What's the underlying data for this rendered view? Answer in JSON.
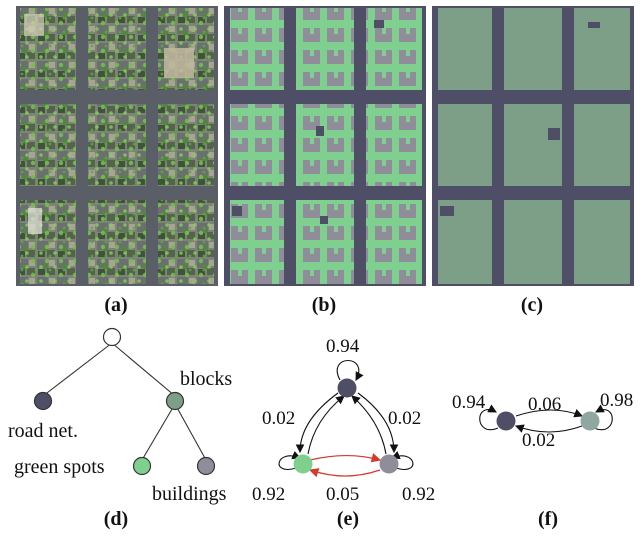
{
  "figure": {
    "panels": [
      {
        "id": "a",
        "label": "(a)",
        "kind": "aerial-rgb"
      },
      {
        "id": "b",
        "label": "(b)",
        "kind": "segmentation"
      },
      {
        "id": "c",
        "label": "(c)",
        "kind": "blocks"
      }
    ],
    "colors": {
      "road": "#4e4e66",
      "green": "#7fd08f",
      "building": "#8f8d9a",
      "block": "#7e9f87",
      "root": "#ffffff",
      "red_edge": "#d23b2e"
    }
  },
  "graph_d": {
    "label": "(d)",
    "nodes": {
      "road": "road net.",
      "blocks": "blocks",
      "green": "green spots",
      "buildings": "buildings"
    }
  },
  "graph_e": {
    "label": "(e)",
    "self_top": "0.94",
    "self_left": "0.92",
    "self_right": "0.92",
    "left_edge": "0.02",
    "right_edge": "0.02",
    "bottom_edge": "0.05"
  },
  "graph_f": {
    "label": "(f)",
    "self_left": "0.94",
    "self_right": "0.98",
    "top_edge": "0.06",
    "bottom_edge": "0.02"
  }
}
